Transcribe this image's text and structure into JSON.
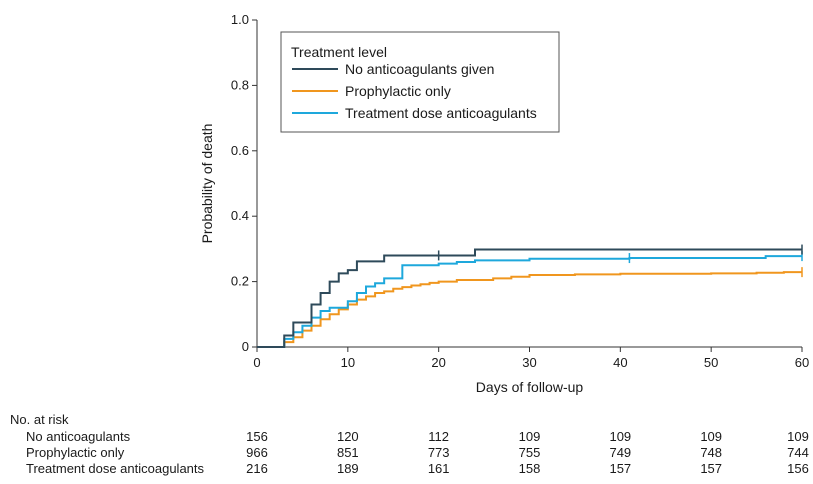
{
  "chart_data": {
    "type": "line",
    "step": true,
    "xlabel": "Days of follow-up",
    "ylabel": "Probability of death",
    "xlim": [
      0,
      60
    ],
    "ylim": [
      0,
      1.0
    ],
    "xticks": [
      0,
      10,
      20,
      30,
      40,
      50,
      60
    ],
    "yticks": [
      0,
      0.2,
      0.4,
      0.6,
      0.8,
      1.0
    ],
    "ytick_labels": [
      "0",
      "0.2",
      "0.4",
      "0.6",
      "0.8",
      "1.0"
    ],
    "grid": false,
    "legend": {
      "title": "Treatment level",
      "placement": "top-left"
    },
    "series": [
      {
        "name": "No anticoagulants given",
        "color": "#2e4a5a",
        "x": [
          0,
          3,
          4,
          6,
          7,
          8,
          9,
          10,
          11,
          12,
          14,
          20,
          24,
          60
        ],
        "y": [
          0,
          0.035,
          0.075,
          0.13,
          0.165,
          0.2,
          0.225,
          0.235,
          0.262,
          0.262,
          0.28,
          0.28,
          0.298,
          0.298
        ],
        "censored": [
          {
            "x": 20,
            "y": 0.28
          },
          {
            "x": 60,
            "y": 0.298
          }
        ]
      },
      {
        "name": "Prophylactic only",
        "color": "#f0961e",
        "x": [
          0,
          3,
          4,
          5,
          6,
          7,
          8,
          9,
          10,
          11,
          12,
          13,
          14,
          15,
          16,
          17,
          18,
          19,
          20,
          22,
          26,
          28,
          30,
          35,
          40,
          50,
          55,
          58,
          60
        ],
        "y": [
          0,
          0.015,
          0.03,
          0.05,
          0.065,
          0.085,
          0.1,
          0.115,
          0.13,
          0.145,
          0.155,
          0.165,
          0.17,
          0.178,
          0.183,
          0.188,
          0.192,
          0.196,
          0.2,
          0.205,
          0.21,
          0.215,
          0.22,
          0.222,
          0.224,
          0.225,
          0.227,
          0.229,
          0.229
        ],
        "censored": [
          {
            "x": 60,
            "y": 0.229
          }
        ]
      },
      {
        "name": "Treatment dose anticoagulants",
        "color": "#1ea8dc",
        "x": [
          0,
          3,
          4,
          5,
          6,
          7,
          8,
          10,
          11,
          12,
          13,
          14,
          16,
          20,
          22,
          24,
          30,
          41,
          56,
          60
        ],
        "y": [
          0,
          0.025,
          0.045,
          0.065,
          0.09,
          0.11,
          0.12,
          0.14,
          0.165,
          0.185,
          0.195,
          0.21,
          0.25,
          0.255,
          0.26,
          0.265,
          0.27,
          0.272,
          0.278,
          0.278
        ],
        "censored": [
          {
            "x": 41,
            "y": 0.272
          },
          {
            "x": 60,
            "y": 0.278
          }
        ]
      }
    ],
    "risk_table": {
      "title": "No. at risk",
      "times": [
        0,
        10,
        20,
        30,
        40,
        50,
        60
      ],
      "rows": [
        {
          "label": "No anticoagulants",
          "values": [
            156,
            120,
            112,
            109,
            109,
            109,
            109
          ]
        },
        {
          "label": "Prophylactic only",
          "values": [
            966,
            851,
            773,
            755,
            749,
            748,
            744
          ]
        },
        {
          "label": "Treatment dose anticoagulants",
          "values": [
            216,
            189,
            161,
            158,
            157,
            157,
            156
          ]
        }
      ]
    }
  }
}
